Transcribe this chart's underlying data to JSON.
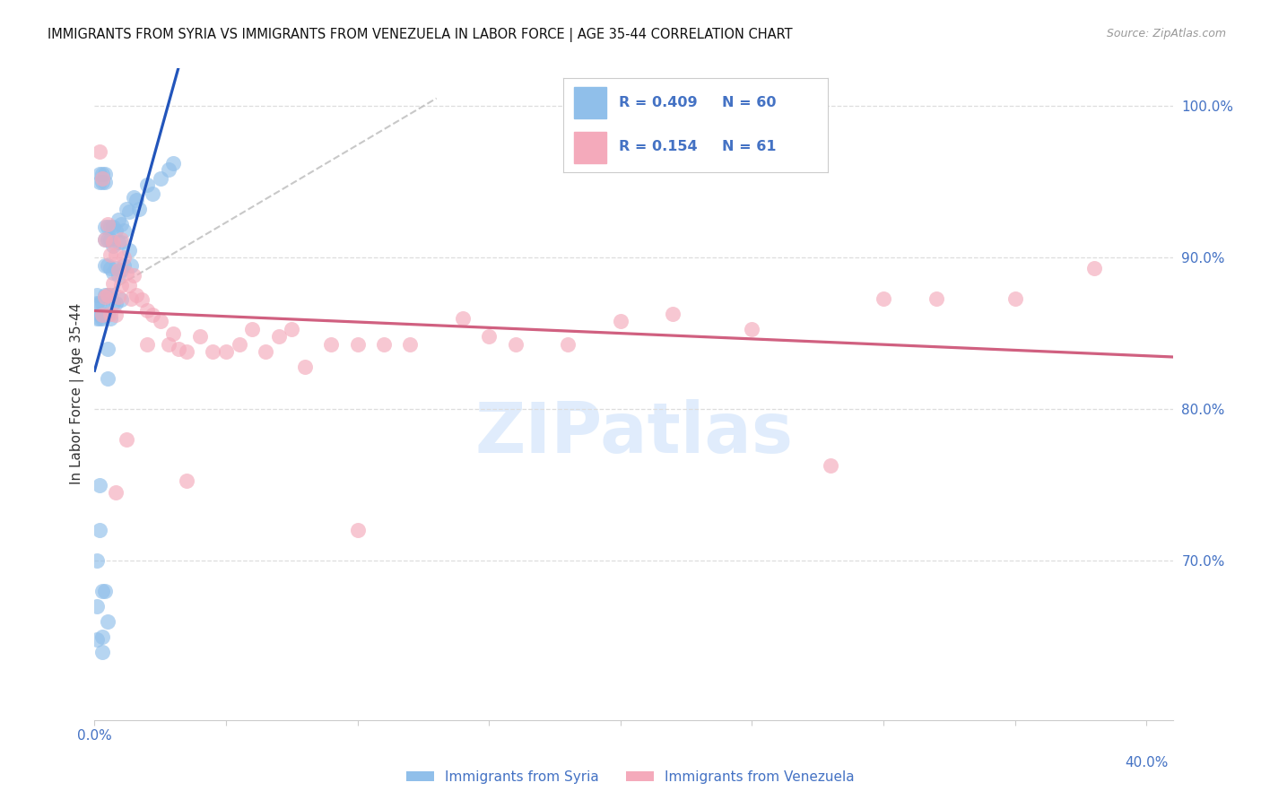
{
  "title": "IMMIGRANTS FROM SYRIA VS IMMIGRANTS FROM VENEZUELA IN LABOR FORCE | AGE 35-44 CORRELATION CHART",
  "source": "Source: ZipAtlas.com",
  "ylabel": "In Labor Force | Age 35-44",
  "xlim": [
    0.0,
    0.41
  ],
  "ylim": [
    0.595,
    1.025
  ],
  "yticks": [
    0.7,
    0.8,
    0.9,
    1.0
  ],
  "ytick_labels": [
    "70.0%",
    "80.0%",
    "90.0%",
    "100.0%"
  ],
  "xticks": [
    0.0,
    0.05,
    0.1,
    0.15,
    0.2,
    0.25,
    0.3,
    0.35,
    0.4
  ],
  "xtick_label_left": "0.0%",
  "xtick_label_right": "40.0%",
  "legend_r_syria": "0.409",
  "legend_n_syria": "60",
  "legend_r_venezuela": "0.154",
  "legend_n_venezuela": "61",
  "color_syria": "#90BFEA",
  "color_venezuela": "#F4AABB",
  "color_syria_line": "#2255BB",
  "color_venezuela_line": "#D06080",
  "color_axis_labels": "#4472C4",
  "color_grid": "#DDDDDD",
  "color_watermark": "#C8DEFA",
  "syria_x": [
    0.001,
    0.001,
    0.001,
    0.002,
    0.002,
    0.002,
    0.002,
    0.002,
    0.003,
    0.003,
    0.003,
    0.003,
    0.003,
    0.004,
    0.004,
    0.004,
    0.004,
    0.004,
    0.004,
    0.004,
    0.005,
    0.005,
    0.005,
    0.005,
    0.005,
    0.005,
    0.005,
    0.006,
    0.006,
    0.006,
    0.006,
    0.006,
    0.007,
    0.007,
    0.007,
    0.007,
    0.008,
    0.008,
    0.008,
    0.009,
    0.009,
    0.009,
    0.01,
    0.01,
    0.01,
    0.01,
    0.011,
    0.011,
    0.012,
    0.013,
    0.013,
    0.014,
    0.015,
    0.016,
    0.017,
    0.02,
    0.022,
    0.025,
    0.028,
    0.03
  ],
  "syria_y": [
    0.875,
    0.87,
    0.86,
    0.955,
    0.95,
    0.862,
    0.87,
    0.86,
    0.955,
    0.95,
    0.862,
    0.87,
    0.86,
    0.955,
    0.95,
    0.92,
    0.912,
    0.895,
    0.875,
    0.862,
    0.92,
    0.912,
    0.895,
    0.875,
    0.862,
    0.84,
    0.82,
    0.92,
    0.912,
    0.893,
    0.875,
    0.86,
    0.92,
    0.908,
    0.89,
    0.87,
    0.918,
    0.893,
    0.87,
    0.925,
    0.91,
    0.888,
    0.922,
    0.91,
    0.892,
    0.872,
    0.918,
    0.895,
    0.932,
    0.93,
    0.905,
    0.895,
    0.94,
    0.938,
    0.932,
    0.948,
    0.942,
    0.952,
    0.958,
    0.962
  ],
  "syria_y_low": [
    0.648,
    0.67,
    0.7,
    0.72,
    0.75,
    0.68,
    0.65,
    0.64,
    0.68,
    0.66
  ],
  "syria_x_low": [
    0.001,
    0.001,
    0.001,
    0.002,
    0.002,
    0.003,
    0.003,
    0.003,
    0.004,
    0.005
  ],
  "venezuela_x": [
    0.002,
    0.003,
    0.003,
    0.004,
    0.004,
    0.005,
    0.005,
    0.006,
    0.006,
    0.007,
    0.007,
    0.008,
    0.008,
    0.009,
    0.009,
    0.01,
    0.01,
    0.011,
    0.012,
    0.013,
    0.014,
    0.015,
    0.016,
    0.018,
    0.02,
    0.022,
    0.025,
    0.028,
    0.03,
    0.032,
    0.035,
    0.04,
    0.045,
    0.05,
    0.055,
    0.06,
    0.065,
    0.07,
    0.075,
    0.08,
    0.09,
    0.1,
    0.11,
    0.12,
    0.14,
    0.15,
    0.16,
    0.18,
    0.2,
    0.22,
    0.25,
    0.28,
    0.3,
    0.32,
    0.35,
    0.38,
    0.008,
    0.012,
    0.02,
    0.035,
    0.1
  ],
  "venezuela_y": [
    0.97,
    0.952,
    0.862,
    0.912,
    0.874,
    0.922,
    0.875,
    0.902,
    0.863,
    0.91,
    0.883,
    0.902,
    0.862,
    0.892,
    0.874,
    0.912,
    0.882,
    0.9,
    0.89,
    0.882,
    0.873,
    0.888,
    0.875,
    0.872,
    0.865,
    0.862,
    0.858,
    0.843,
    0.85,
    0.84,
    0.838,
    0.848,
    0.838,
    0.838,
    0.843,
    0.853,
    0.838,
    0.848,
    0.853,
    0.828,
    0.843,
    0.843,
    0.843,
    0.843,
    0.86,
    0.848,
    0.843,
    0.843,
    0.858,
    0.863,
    0.853,
    0.763,
    0.873,
    0.873,
    0.873,
    0.893,
    0.745,
    0.78,
    0.843,
    0.753,
    0.72
  ],
  "ref_line_x": [
    0.0,
    0.13
  ],
  "ref_line_y": [
    0.872,
    1.005
  ]
}
